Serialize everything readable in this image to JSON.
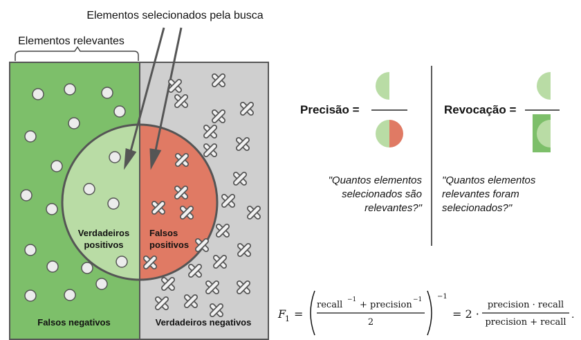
{
  "labels": {
    "selected_by_search": "Elementos selecionados pela busca",
    "relevant_elements": "Elementos relevantes",
    "true_positives_line1": "Verdadeiros",
    "true_positives_line2": "positivos",
    "false_positives_line1": "Falsos",
    "false_positives_line2": "positivos",
    "false_negatives": "Falsos negativos",
    "true_negatives": "Verdadeiros negativos"
  },
  "precision": {
    "label": "Precisão =",
    "question_line1": "\"Quantos elementos",
    "question_line2": "selecionados são",
    "question_line3": "relevantes?\""
  },
  "recall": {
    "label": "Revocação =",
    "question_line1": "\"Quantos elementos",
    "question_line2": "relevantes foram",
    "question_line3": "selecionados?\""
  },
  "formula": {
    "lhs": "F",
    "lhs_sub": "1",
    "eq": "=",
    "num_a": "recall",
    "num_plus": "+ precision",
    "sup": "−1",
    "den": "2",
    "outer_exp": "−1",
    "eq2": "= 2 ·",
    "frac_num": "precision · recall",
    "frac_den": "precision + recall",
    "end": "."
  },
  "colors": {
    "relevant_green": "#7dbf6a",
    "light_green": "#b9dca5",
    "red": "#e07a64",
    "gray": "#cfcfcf",
    "stroke": "#555555"
  }
}
